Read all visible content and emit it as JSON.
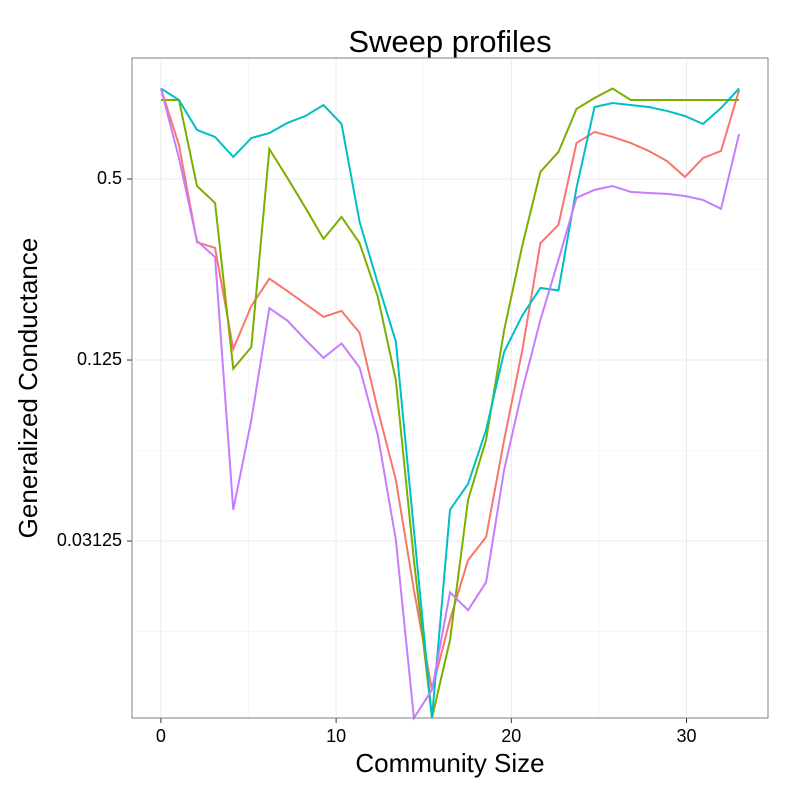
{
  "chart_data": {
    "type": "line",
    "title": "Sweep profiles",
    "x_label": "Community Size",
    "y_label": "Generalized Conductance",
    "x": [
      0,
      1.03,
      2.06,
      3.09,
      4.13,
      5.16,
      6.19,
      7.22,
      8.25,
      9.28,
      10.31,
      11.34,
      12.38,
      13.41,
      14.44,
      15.47,
      16.5,
      17.53,
      18.56,
      19.59,
      20.63,
      21.66,
      22.69,
      23.72,
      24.75,
      25.78,
      26.81,
      27.84,
      28.88,
      29.91,
      30.94,
      31.97,
      33.0
    ],
    "series": [
      {
        "color": "#F8766D",
        "values": [
          1.0,
          0.649,
          0.308,
          0.295,
          0.136,
          0.189,
          0.233,
          0.212,
          0.192,
          0.174,
          0.182,
          0.154,
          0.0854,
          0.0499,
          0.0215,
          0.01,
          0.0171,
          0.027,
          0.0322,
          0.0678,
          0.135,
          0.306,
          0.352,
          0.659,
          0.717,
          0.69,
          0.659,
          0.62,
          0.574,
          0.508,
          0.587,
          0.62,
          0.988
        ]
      },
      {
        "color": "#7CAE00",
        "values": [
          0.916,
          0.916,
          0.474,
          0.416,
          0.117,
          0.138,
          0.629,
          0.504,
          0.401,
          0.316,
          0.374,
          0.306,
          0.203,
          0.107,
          0.027,
          0.00806,
          0.01464,
          0.0428,
          0.0678,
          0.157,
          0.301,
          0.528,
          0.615,
          0.855,
          0.93,
          1.0,
          0.916,
          0.916,
          0.916,
          0.916,
          0.916,
          0.916,
          0.916
        ]
      },
      {
        "color": "#00BFC4",
        "values": [
          1.0,
          0.916,
          0.728,
          0.69,
          0.592,
          0.684,
          0.711,
          0.768,
          0.81,
          0.881,
          0.762,
          0.36,
          0.225,
          0.144,
          0.034,
          0.00806,
          0.0397,
          0.0484,
          0.0732,
          0.133,
          0.176,
          0.217,
          0.213,
          0.467,
          0.868,
          0.895,
          0.881,
          0.868,
          0.842,
          0.81,
          0.762,
          0.861,
          1.0
        ]
      },
      {
        "color": "#C77CFF",
        "values": [
          1.0,
          0.587,
          0.311,
          0.275,
          0.0397,
          0.0789,
          0.186,
          0.169,
          0.146,
          0.127,
          0.142,
          0.118,
          0.0703,
          0.0315,
          0.00806,
          0.01,
          0.0211,
          0.0184,
          0.0228,
          0.0539,
          0.0995,
          0.17,
          0.269,
          0.433,
          0.46,
          0.474,
          0.453,
          0.449,
          0.446,
          0.439,
          0.426,
          0.398,
          0.706
        ]
      }
    ],
    "xlim": [
      -1.65,
      34.65
    ],
    "xticks": [
      0,
      10,
      20,
      30
    ],
    "ylim": [
      0.00806,
      1.263
    ],
    "yticks": [
      0.5,
      0.125,
      0.03125
    ],
    "y_log_base": 2,
    "grid": true,
    "x_minor_grid": [
      5,
      15,
      25
    ],
    "y_minor_grid": [
      0.25,
      0.0625,
      0.015625
    ]
  }
}
